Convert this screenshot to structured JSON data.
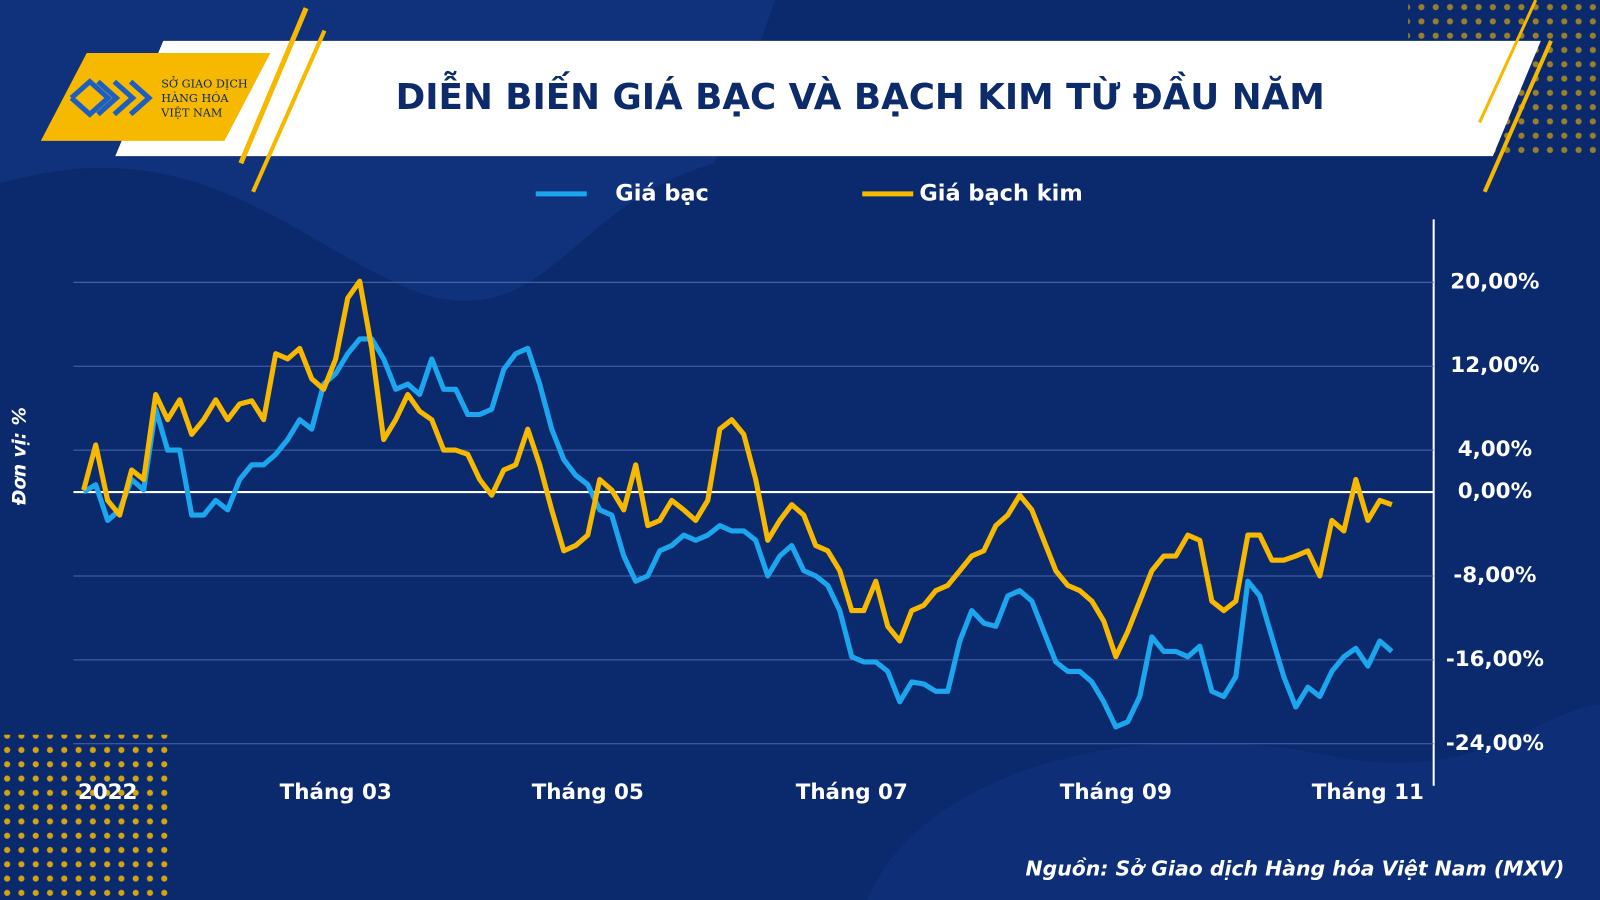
{
  "logo": {
    "lines": [
      "SỞ GIAO DỊCH",
      "HÀNG HÓA",
      "VIỆT NAM"
    ]
  },
  "chart_data": {
    "type": "line",
    "title": "DIỄN BIẾN GIÁ BẠC VÀ BẠCH KIM TỪ ĐẦU NĂM",
    "y_label": "Đơn vị: %",
    "source": "Nguồn: Sở Giao dịch Hàng hóa Việt Nam (MXV)",
    "categories": [
      null,
      null,
      "2022",
      null,
      null,
      null,
      null,
      null,
      null,
      null,
      null,
      null,
      null,
      null,
      null,
      null,
      null,
      null,
      null,
      null,
      null,
      "Tháng 03",
      null,
      null,
      null,
      null,
      null,
      null,
      null,
      null,
      null,
      null,
      null,
      null,
      null,
      null,
      null,
      null,
      null,
      null,
      null,
      null,
      "Tháng 05",
      null,
      null,
      null,
      null,
      null,
      null,
      null,
      null,
      null,
      null,
      null,
      null,
      null,
      null,
      null,
      null,
      null,
      null,
      null,
      null,
      null,
      "Tháng 07",
      null,
      null,
      null,
      null,
      null,
      null,
      null,
      null,
      null,
      null,
      null,
      null,
      null,
      null,
      null,
      null,
      null,
      null,
      null,
      null,
      null,
      "Tháng 09",
      null,
      null,
      null,
      null,
      null,
      null,
      null,
      null,
      null,
      null,
      null,
      null,
      null,
      null,
      null,
      null,
      null,
      null,
      null,
      null,
      "Tháng 11",
      null,
      null
    ],
    "series": [
      {
        "name": "Giá bạc",
        "color": "#1ca6ee",
        "values": [
          0,
          0.7,
          -2.7,
          -1.7,
          1.2,
          0.2,
          7.9,
          4,
          4,
          -2.2,
          -2.2,
          -0.8,
          -1.7,
          1.2,
          2.6,
          2.6,
          3.6,
          5,
          6.9,
          6,
          10.3,
          11.3,
          13.2,
          14.6,
          14.6,
          12.7,
          9.8,
          10.3,
          9.3,
          12.7,
          9.8,
          9.8,
          7.4,
          7.4,
          7.9,
          11.7,
          13.2,
          13.7,
          10.3,
          6,
          3.1,
          1.6,
          0.7,
          -1.7,
          -2.2,
          -6.1,
          -8.5,
          -8,
          -5.6,
          -5.1,
          -4.1,
          -4.6,
          -4.1,
          -3.2,
          -3.7,
          -3.7,
          -4.6,
          -8,
          -6.1,
          -5.1,
          -7.5,
          -8,
          -8.9,
          -11.3,
          -15.7,
          -16.2,
          -16.2,
          -17.1,
          -20,
          -18.1,
          -18.3,
          -19,
          -19,
          -14.2,
          -11.3,
          -12.5,
          -12.8,
          -9.9,
          -9.4,
          -10.4,
          -13.3,
          -16.2,
          -17.1,
          -17.1,
          -18.1,
          -20,
          -22.4,
          -21.9,
          -19.5,
          -13.8,
          -15.2,
          -15.2,
          -15.7,
          -14.7,
          -19,
          -19.5,
          -17.6,
          -8.5,
          -9.9,
          -13.8,
          -17.6,
          -20.5,
          -18.6,
          -19.5,
          -17.1,
          -15.7,
          -14.9,
          -16.6,
          -14.2,
          -15.2
        ]
      },
      {
        "name": "Giá bạch kim",
        "color": "#f7b800",
        "values": [
          0.2,
          4.5,
          -0.8,
          -2.2,
          2.1,
          1.2,
          9.3,
          6.9,
          8.8,
          5.5,
          6.9,
          8.8,
          6.9,
          8.4,
          8.7,
          6.9,
          13.2,
          12.7,
          13.7,
          10.8,
          9.8,
          12.7,
          18.5,
          20.1,
          13.7,
          5,
          6.9,
          9.3,
          7.7,
          6.9,
          4,
          4,
          3.6,
          1.2,
          -0.3,
          2.1,
          2.6,
          6,
          2.6,
          -1.7,
          -5.6,
          -5.1,
          -4.1,
          1.2,
          0.2,
          -1.7,
          2.6,
          -3.2,
          -2.7,
          -0.8,
          -1.7,
          -2.7,
          -0.8,
          6,
          6.9,
          5.5,
          1.2,
          -4.6,
          -2.7,
          -1.2,
          -2.2,
          -5.1,
          -5.6,
          -7.5,
          -11.3,
          -11.3,
          -8.5,
          -12.8,
          -14.2,
          -11.3,
          -10.8,
          -9.4,
          -8.9,
          -7.5,
          -6.1,
          -5.6,
          -3.2,
          -2.2,
          -0.3,
          -1.7,
          -4.6,
          -7.5,
          -8.9,
          -9.4,
          -10.4,
          -12.3,
          -15.7,
          -13.3,
          -10.4,
          -7.5,
          -6.1,
          -6.1,
          -4.1,
          -4.6,
          -10.4,
          -11.3,
          -10.4,
          -4.1,
          -4.1,
          -6.5,
          -6.5,
          -6.1,
          -5.6,
          -8,
          -2.7,
          -3.7,
          1.2,
          -2.7,
          -0.8,
          -1.2
        ]
      }
    ],
    "ylim": [
      -28,
      26
    ],
    "yticks": [
      {
        "value": 20,
        "label": "20,00%"
      },
      {
        "value": 12,
        "label": "12,00%"
      },
      {
        "value": 4,
        "label": "4,00%"
      },
      {
        "value": 0,
        "label": "0,00%"
      },
      {
        "value": -8,
        "label": "-8,00%"
      },
      {
        "value": -16,
        "label": "-16,00%"
      },
      {
        "value": -24,
        "label": "-24,00%"
      }
    ],
    "grid": true
  }
}
